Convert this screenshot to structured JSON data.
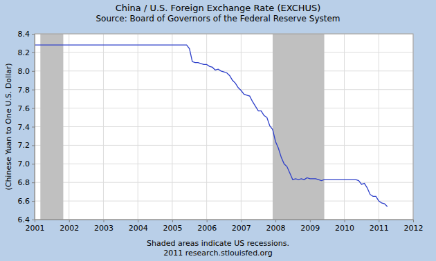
{
  "chart_data": {
    "type": "line",
    "title": "China / U.S. Foreign Exchange Rate (EXCHUS)",
    "subtitle": "Source: Board of Governors of the Federal Reserve System",
    "ylabel": "(Chinese Yuan to One U.S. Dollar)",
    "annotations": [
      "Shaded areas indicate US recessions.",
      "2011 research.stlouisfed.org"
    ],
    "color": "#2c3ec9",
    "grid": true,
    "xlim": [
      2001,
      2012
    ],
    "xticks": [
      2001,
      2002,
      2003,
      2004,
      2005,
      2006,
      2007,
      2008,
      2009,
      2010,
      2011,
      2012
    ],
    "ylim": [
      6.4,
      8.4
    ],
    "yticks": [
      6.4,
      6.6,
      6.8,
      {
        "value": 7,
        "label": "7.0"
      },
      7.2,
      7.4,
      7.6,
      7.8,
      {
        "value": 8,
        "label": "8.0"
      },
      8.2,
      8.4
    ],
    "recessions": [
      {
        "start": 2001.167,
        "end": 2001.833
      },
      {
        "start": 2007.917,
        "end": 2009.417
      }
    ],
    "x": [
      2001,
      2001.083,
      2001.167,
      2001.25,
      2001.333,
      2001.417,
      2001.5,
      2001.583,
      2001.667,
      2001.75,
      2001.833,
      2001.917,
      2002,
      2002.083,
      2002.167,
      2002.25,
      2002.333,
      2002.417,
      2002.5,
      2002.583,
      2002.667,
      2002.75,
      2002.833,
      2002.917,
      2003,
      2003.083,
      2003.167,
      2003.25,
      2003.333,
      2003.417,
      2003.5,
      2003.583,
      2003.667,
      2003.75,
      2003.833,
      2003.917,
      2004,
      2004.083,
      2004.167,
      2004.25,
      2004.333,
      2004.417,
      2004.5,
      2004.583,
      2004.667,
      2004.75,
      2004.833,
      2004.917,
      2005,
      2005.083,
      2005.167,
      2005.25,
      2005.333,
      2005.417,
      2005.5,
      2005.583,
      2005.667,
      2005.75,
      2005.833,
      2005.917,
      2006,
      2006.083,
      2006.167,
      2006.25,
      2006.333,
      2006.417,
      2006.5,
      2006.583,
      2006.667,
      2006.75,
      2006.833,
      2006.917,
      2007,
      2007.083,
      2007.167,
      2007.25,
      2007.333,
      2007.417,
      2007.5,
      2007.583,
      2007.667,
      2007.75,
      2007.833,
      2007.917,
      2008,
      2008.083,
      2008.167,
      2008.25,
      2008.333,
      2008.417,
      2008.5,
      2008.583,
      2008.667,
      2008.75,
      2008.833,
      2008.917,
      2009,
      2009.083,
      2009.167,
      2009.25,
      2009.333,
      2009.417,
      2009.5,
      2009.583,
      2009.667,
      2009.75,
      2009.833,
      2009.917,
      2010,
      2010.083,
      2010.167,
      2010.25,
      2010.333,
      2010.417,
      2010.5,
      2010.583,
      2010.667,
      2010.75,
      2010.833,
      2010.917,
      2011,
      2011.083,
      2011.167,
      2011.25
    ],
    "values": [
      8.28,
      8.28,
      8.28,
      8.28,
      8.28,
      8.28,
      8.28,
      8.28,
      8.28,
      8.28,
      8.28,
      8.28,
      8.28,
      8.28,
      8.28,
      8.28,
      8.28,
      8.28,
      8.28,
      8.28,
      8.28,
      8.28,
      8.28,
      8.28,
      8.28,
      8.28,
      8.28,
      8.28,
      8.28,
      8.28,
      8.28,
      8.28,
      8.28,
      8.28,
      8.28,
      8.28,
      8.28,
      8.28,
      8.28,
      8.28,
      8.28,
      8.28,
      8.28,
      8.28,
      8.28,
      8.28,
      8.28,
      8.28,
      8.28,
      8.28,
      8.28,
      8.28,
      8.28,
      8.28,
      8.24,
      8.1,
      8.09,
      8.09,
      8.08,
      8.07,
      8.07,
      8.05,
      8.04,
      8.01,
      8.02,
      8.0,
      7.99,
      7.98,
      7.95,
      7.9,
      7.87,
      7.82,
      7.79,
      7.75,
      7.74,
      7.73,
      7.67,
      7.62,
      7.57,
      7.57,
      7.52,
      7.5,
      7.41,
      7.37,
      7.24,
      7.17,
      7.07,
      7.0,
      6.97,
      6.9,
      6.83,
      6.84,
      6.83,
      6.84,
      6.83,
      6.85,
      6.84,
      6.84,
      6.84,
      6.83,
      6.82,
      6.83,
      6.83,
      6.83,
      6.83,
      6.83,
      6.83,
      6.83,
      6.83,
      6.83,
      6.83,
      6.83,
      6.83,
      6.82,
      6.78,
      6.79,
      6.74,
      6.67,
      6.65,
      6.65,
      6.6,
      6.58,
      6.57,
      6.54
    ]
  }
}
